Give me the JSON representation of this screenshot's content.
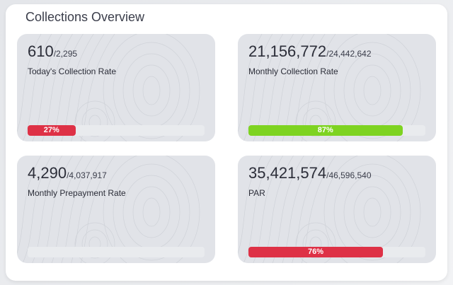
{
  "title": "Collections Overview",
  "cards": [
    {
      "value": "610",
      "total": "/2,295",
      "label": "Today's Collection Rate",
      "percent": 27,
      "percent_label": "27%",
      "color": "#de3146"
    },
    {
      "value": "21,156,772",
      "total": "/24,442,642",
      "label": "Monthly Collection Rate",
      "percent": 87,
      "percent_label": "87%",
      "color": "#7ed321"
    },
    {
      "value": "4,290",
      "total": "/4,037,917",
      "label": "Monthly Prepayment Rate",
      "percent": 0,
      "percent_label": "",
      "color": "#de3146"
    },
    {
      "value": "35,421,574",
      "total": "/46,596,540",
      "label": "PAR",
      "percent": 76,
      "percent_label": "76%",
      "color": "#de3146"
    }
  ]
}
